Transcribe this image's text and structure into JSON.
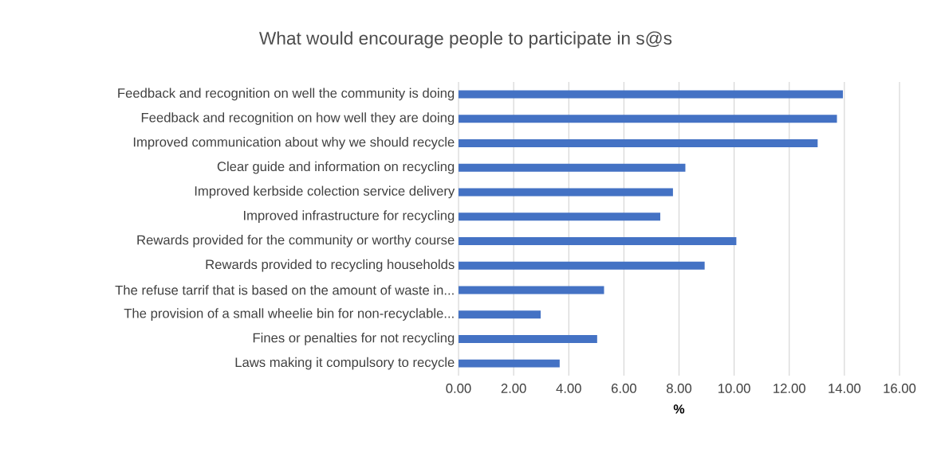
{
  "chart_data": {
    "type": "bar",
    "orientation": "horizontal",
    "title": "What would encourage people to participate in s@s",
    "xlabel": "%",
    "categories": [
      "Feedback and recognition on well the community is doing",
      "Feedback and recognition on how well they are doing",
      "Improved communication about why we should recycle",
      "Clear guide and information on recycling",
      "Improved kerbside colection service delivery",
      "Improved infrastructure for recycling",
      "Rewards provided for  the community or worthy course",
      "Rewards provided to recycling households",
      "The refuse tarrif that is based on the amount of waste in...",
      "The provision of a small wheelie bin for non-recyclable...",
      "Fines or penalties for not recycling",
      "Laws making it compulsory to recycle"
    ],
    "values": [
      13.95,
      13.73,
      13.03,
      8.23,
      7.78,
      7.32,
      10.08,
      8.93,
      5.28,
      2.98,
      5.03,
      3.67
    ],
    "color": "#4472c4",
    "xlim": [
      0,
      16
    ],
    "xticks": [
      {
        "value": 0,
        "label": "0.00"
      },
      {
        "value": 2,
        "label": "2.00"
      },
      {
        "value": 4,
        "label": "4.00"
      },
      {
        "value": 6,
        "label": "6.00"
      },
      {
        "value": 8,
        "label": "8.00"
      },
      {
        "value": 10,
        "label": "10.00"
      },
      {
        "value": 12,
        "label": "12.00"
      },
      {
        "value": 14,
        "label": "14.00"
      },
      {
        "value": 16,
        "label": "16.00"
      }
    ],
    "grid": "x"
  }
}
